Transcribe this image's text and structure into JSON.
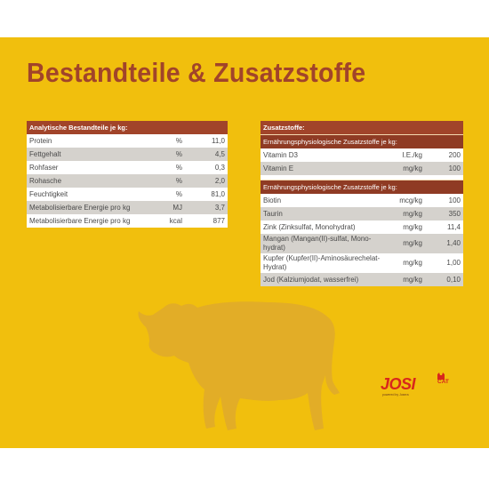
{
  "title": "Bestandteile & Zusatzstoffe",
  "colors": {
    "background": "#f1bf0d",
    "accent": "#a1442a",
    "logo": "#d8261c"
  },
  "left_table": {
    "header": "Analytische Bestandteile je kg:",
    "rows": [
      {
        "name": "Protein",
        "unit": "%",
        "value": "11,0"
      },
      {
        "name": "Fettgehalt",
        "unit": "%",
        "value": "4,5"
      },
      {
        "name": "Rohfaser",
        "unit": "%",
        "value": "0,3"
      },
      {
        "name": "Rohasche",
        "unit": "%",
        "value": "2,0"
      },
      {
        "name": "Feuchtigkeit",
        "unit": "%",
        "value": "81,0"
      },
      {
        "name": "Metabolisierbare Energie pro kg",
        "unit": "MJ",
        "value": "3,7"
      },
      {
        "name": "Metabolisierbare Energie pro kg",
        "unit": "kcal",
        "value": "877"
      }
    ]
  },
  "right_table": {
    "header": "Zusatzstoffe:",
    "section1": {
      "header": "Ernährungsphysiologische Zusatzstoffe je kg:",
      "rows": [
        {
          "name": "Vitamin D3",
          "unit": "I.E./kg",
          "value": "200"
        },
        {
          "name": "Vitamin E",
          "unit": "mg/kg",
          "value": "100"
        }
      ]
    },
    "section2": {
      "header": "Ernährungsphysiologische Zusatzstoffe je kg:",
      "rows": [
        {
          "name": "Biotin",
          "unit": "mcg/kg",
          "value": "100"
        },
        {
          "name": "Taurin",
          "unit": "mg/kg",
          "value": "350"
        },
        {
          "name": "Zink (Zinksulfat, Monohydrat)",
          "unit": "mg/kg",
          "value": "11,4"
        },
        {
          "name": "Mangan (Mangan(II)-sulfat, Mono-hydrat)",
          "unit": "mg/kg",
          "value": "1,40"
        },
        {
          "name": "Kupfer (Kupfer(II)-Aminosäurechelat-Hydrat)",
          "unit": "mg/kg",
          "value": "1,00"
        },
        {
          "name": "Jod (Kalziumjodat, wasserfrei)",
          "unit": "mg/kg",
          "value": "0,10"
        }
      ]
    }
  },
  "logo": {
    "brand": "JOSI",
    "sub": "CAT",
    "by": "powered by Josera",
    "icon": "cat-icon"
  },
  "decoration": {
    "icon": "cow-silhouette-icon"
  }
}
